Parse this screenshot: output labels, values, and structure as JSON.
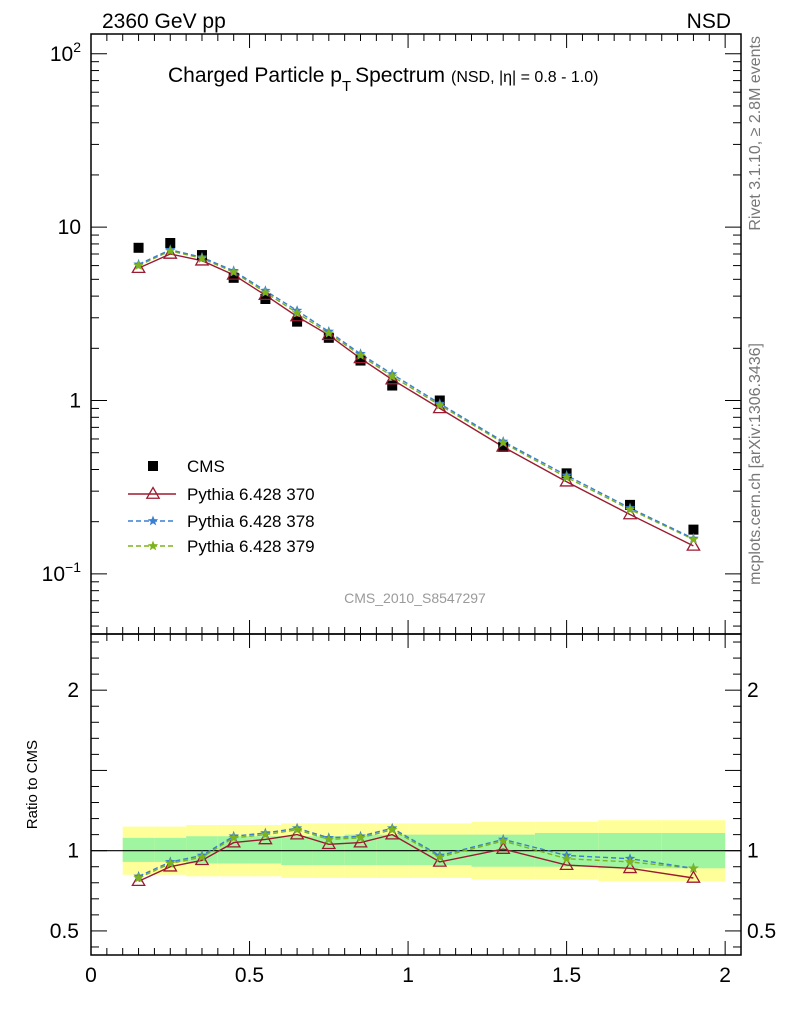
{
  "header": {
    "left": "2360 GeV pp",
    "right": "NSD"
  },
  "side": {
    "rivet": "Rivet 3.1.10, ≥ 2.8M events",
    "mcplots": "mcplots.cern.ch [arXiv:1306.3436]"
  },
  "title": {
    "main": "Charged Particle p",
    "sub": "T",
    "rest": "Spectrum",
    "small": "(NSD, |η| = 0.8 - 1.0)"
  },
  "analysis_tag": "CMS_2010_S8547297",
  "ratio_ylabel": "Ratio to CMS",
  "colors": {
    "data": "#000000",
    "p370": "#9b1b30",
    "p378": "#3a7fd0",
    "p379": "#7db31b",
    "band_inner": "#a0f5a0",
    "band_outer": "#ffff9a",
    "tag": "#9a9a9a"
  },
  "chart_data": [
    {
      "type": "scatter",
      "panel": "main",
      "yscale": "log",
      "xlim": [
        0,
        2.05
      ],
      "ylim": [
        0.045,
        130
      ],
      "ytick_labels": [
        "10^-1",
        "1",
        "10",
        "10^2"
      ],
      "x": [
        0.15,
        0.25,
        0.35,
        0.45,
        0.55,
        0.65,
        0.75,
        0.85,
        0.95,
        1.1,
        1.3,
        1.5,
        1.7,
        1.9
      ],
      "series": [
        {
          "name": "CMS",
          "marker": "square",
          "values": [
            7.6,
            8.1,
            6.9,
            5.1,
            3.85,
            2.85,
            2.3,
            1.7,
            1.22,
            1.0,
            0.54,
            0.38,
            0.25,
            0.18
          ]
        },
        {
          "name": "Pythia 6.428 370",
          "marker": "triangle",
          "values": [
            5.8,
            7.0,
            6.4,
            5.3,
            4.05,
            3.05,
            2.38,
            1.75,
            1.32,
            0.9,
            0.54,
            0.34,
            0.22,
            0.145
          ]
        },
        {
          "name": "Pythia 6.428 378",
          "marker": "star",
          "values": [
            6.1,
            7.4,
            6.7,
            5.6,
            4.3,
            3.3,
            2.5,
            1.86,
            1.42,
            0.96,
            0.58,
            0.37,
            0.24,
            0.16
          ]
        },
        {
          "name": "Pythia 6.428 379",
          "marker": "star",
          "values": [
            6.0,
            7.3,
            6.6,
            5.5,
            4.2,
            3.2,
            2.44,
            1.82,
            1.38,
            0.94,
            0.57,
            0.36,
            0.235,
            0.158
          ]
        }
      ]
    },
    {
      "type": "line",
      "panel": "ratio",
      "xlim": [
        0,
        2.05
      ],
      "ylim": [
        0.35,
        2.35
      ],
      "ylabel": "Ratio to CMS",
      "xtick_labels": [
        "0",
        "0.5",
        "1",
        "1.5",
        "2"
      ],
      "ytick_labels": [
        "0.5",
        "1",
        "2"
      ],
      "x": [
        0.15,
        0.25,
        0.35,
        0.45,
        0.55,
        0.65,
        0.75,
        0.85,
        0.95,
        1.1,
        1.3,
        1.5,
        1.7,
        1.9
      ],
      "series": [
        {
          "name": "Pythia 6.428 370",
          "values": [
            0.81,
            0.9,
            0.94,
            1.05,
            1.07,
            1.1,
            1.04,
            1.05,
            1.1,
            0.93,
            1.01,
            0.91,
            0.89,
            0.83
          ]
        },
        {
          "name": "Pythia 6.428 378",
          "values": [
            0.84,
            0.93,
            0.97,
            1.09,
            1.11,
            1.14,
            1.08,
            1.09,
            1.14,
            0.97,
            1.07,
            0.97,
            0.95,
            0.89
          ]
        },
        {
          "name": "Pythia 6.428 379",
          "values": [
            0.83,
            0.92,
            0.96,
            1.08,
            1.1,
            1.13,
            1.07,
            1.08,
            1.13,
            0.96,
            1.06,
            0.95,
            0.93,
            0.89
          ]
        }
      ],
      "bands": {
        "edges": [
          0.1,
          0.2,
          0.3,
          0.4,
          0.5,
          0.6,
          0.7,
          0.8,
          0.9,
          1.0,
          1.2,
          1.4,
          1.6,
          1.8,
          2.0
        ],
        "inner": [
          [
            0.93,
            1.08
          ],
          [
            0.93,
            1.08
          ],
          [
            0.92,
            1.09
          ],
          [
            0.92,
            1.09
          ],
          [
            0.92,
            1.09
          ],
          [
            0.91,
            1.09
          ],
          [
            0.91,
            1.09
          ],
          [
            0.91,
            1.1
          ],
          [
            0.91,
            1.1
          ],
          [
            0.91,
            1.1
          ],
          [
            0.9,
            1.1
          ],
          [
            0.9,
            1.11
          ],
          [
            0.89,
            1.11
          ],
          [
            0.89,
            1.11
          ]
        ],
        "outer": [
          [
            0.85,
            1.15
          ],
          [
            0.85,
            1.15
          ],
          [
            0.84,
            1.16
          ],
          [
            0.84,
            1.16
          ],
          [
            0.84,
            1.16
          ],
          [
            0.83,
            1.17
          ],
          [
            0.83,
            1.17
          ],
          [
            0.83,
            1.17
          ],
          [
            0.83,
            1.17
          ],
          [
            0.83,
            1.17
          ],
          [
            0.82,
            1.18
          ],
          [
            0.82,
            1.18
          ],
          [
            0.81,
            1.19
          ],
          [
            0.81,
            1.19
          ]
        ]
      }
    }
  ]
}
